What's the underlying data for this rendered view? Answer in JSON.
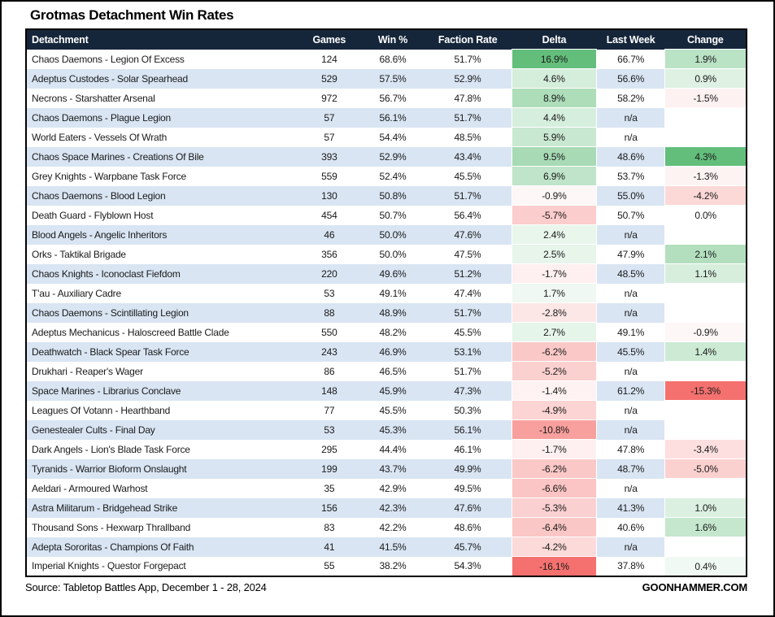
{
  "title": "Grotmas Detachment Win Rates",
  "colors": {
    "header_bg": "#16263a",
    "stripe": "#d9e5f3",
    "scale_positive_green": "#63be7b",
    "scale_negative_red": "#f4716f",
    "blank_cell": "#ffffff"
  },
  "table": {
    "columns": [
      "Detachment",
      "Games",
      "Win %",
      "Faction Rate",
      "Delta",
      "Last Week",
      "Change"
    ],
    "rows": [
      {
        "detachment": "Chaos Daemons - Legion Of Excess",
        "games": "124",
        "win": "68.6%",
        "faction": "51.7%",
        "delta": "16.9%",
        "last_week": "66.7%",
        "change": "1.9%"
      },
      {
        "detachment": "Adeptus Custodes - Solar Spearhead",
        "games": "529",
        "win": "57.5%",
        "faction": "52.9%",
        "delta": "4.6%",
        "last_week": "56.6%",
        "change": "0.9%"
      },
      {
        "detachment": "Necrons - Starshatter Arsenal",
        "games": "972",
        "win": "56.7%",
        "faction": "47.8%",
        "delta": "8.9%",
        "last_week": "58.2%",
        "change": "-1.5%"
      },
      {
        "detachment": "Chaos Daemons - Plague Legion",
        "games": "57",
        "win": "56.1%",
        "faction": "51.7%",
        "delta": "4.4%",
        "last_week": "n/a",
        "change": ""
      },
      {
        "detachment": "World Eaters - Vessels Of Wrath",
        "games": "57",
        "win": "54.4%",
        "faction": "48.5%",
        "delta": "5.9%",
        "last_week": "n/a",
        "change": ""
      },
      {
        "detachment": "Chaos Space Marines - Creations Of Bile",
        "games": "393",
        "win": "52.9%",
        "faction": "43.4%",
        "delta": "9.5%",
        "last_week": "48.6%",
        "change": "4.3%"
      },
      {
        "detachment": "Grey Knights - Warpbane Task Force",
        "games": "559",
        "win": "52.4%",
        "faction": "45.5%",
        "delta": "6.9%",
        "last_week": "53.7%",
        "change": "-1.3%"
      },
      {
        "detachment": "Chaos Daemons - Blood Legion",
        "games": "130",
        "win": "50.8%",
        "faction": "51.7%",
        "delta": "-0.9%",
        "last_week": "55.0%",
        "change": "-4.2%"
      },
      {
        "detachment": "Death Guard - Flyblown Host",
        "games": "454",
        "win": "50.7%",
        "faction": "56.4%",
        "delta": "-5.7%",
        "last_week": "50.7%",
        "change": "0.0%"
      },
      {
        "detachment": "Blood Angels - Angelic Inheritors",
        "games": "46",
        "win": "50.0%",
        "faction": "47.6%",
        "delta": "2.4%",
        "last_week": "n/a",
        "change": ""
      },
      {
        "detachment": "Orks - Taktikal Brigade",
        "games": "356",
        "win": "50.0%",
        "faction": "47.5%",
        "delta": "2.5%",
        "last_week": "47.9%",
        "change": "2.1%"
      },
      {
        "detachment": "Chaos Knights - Iconoclast Fiefdom",
        "games": "220",
        "win": "49.6%",
        "faction": "51.2%",
        "delta": "-1.7%",
        "last_week": "48.5%",
        "change": "1.1%"
      },
      {
        "detachment": "T'au - Auxiliary Cadre",
        "games": "53",
        "win": "49.1%",
        "faction": "47.4%",
        "delta": "1.7%",
        "last_week": "n/a",
        "change": ""
      },
      {
        "detachment": "Chaos Daemons - Scintillating Legion",
        "games": "88",
        "win": "48.9%",
        "faction": "51.7%",
        "delta": "-2.8%",
        "last_week": "n/a",
        "change": ""
      },
      {
        "detachment": "Adeptus Mechanicus - Haloscreed Battle Clade",
        "games": "550",
        "win": "48.2%",
        "faction": "45.5%",
        "delta": "2.7%",
        "last_week": "49.1%",
        "change": "-0.9%"
      },
      {
        "detachment": "Deathwatch - Black Spear Task Force",
        "games": "243",
        "win": "46.9%",
        "faction": "53.1%",
        "delta": "-6.2%",
        "last_week": "45.5%",
        "change": "1.4%"
      },
      {
        "detachment": "Drukhari - Reaper's Wager",
        "games": "86",
        "win": "46.5%",
        "faction": "51.7%",
        "delta": "-5.2%",
        "last_week": "n/a",
        "change": ""
      },
      {
        "detachment": "Space Marines - Librarius Conclave",
        "games": "148",
        "win": "45.9%",
        "faction": "47.3%",
        "delta": "-1.4%",
        "last_week": "61.2%",
        "change": "-15.3%"
      },
      {
        "detachment": "Leagues Of Votann - Hearthband",
        "games": "77",
        "win": "45.5%",
        "faction": "50.3%",
        "delta": "-4.9%",
        "last_week": "n/a",
        "change": ""
      },
      {
        "detachment": "Genestealer Cults - Final Day",
        "games": "53",
        "win": "45.3%",
        "faction": "56.1%",
        "delta": "-10.8%",
        "last_week": "n/a",
        "change": ""
      },
      {
        "detachment": "Dark Angels - Lion's Blade Task Force",
        "games": "295",
        "win": "44.4%",
        "faction": "46.1%",
        "delta": "-1.7%",
        "last_week": "47.8%",
        "change": "-3.4%"
      },
      {
        "detachment": "Tyranids - Warrior Bioform Onslaught",
        "games": "199",
        "win": "43.7%",
        "faction": "49.9%",
        "delta": "-6.2%",
        "last_week": "48.7%",
        "change": "-5.0%"
      },
      {
        "detachment": "Aeldari - Armoured Warhost",
        "games": "35",
        "win": "42.9%",
        "faction": "49.5%",
        "delta": "-6.6%",
        "last_week": "n/a",
        "change": ""
      },
      {
        "detachment": "Astra Militarum - Bridgehead Strike",
        "games": "156",
        "win": "42.3%",
        "faction": "47.6%",
        "delta": "-5.3%",
        "last_week": "41.3%",
        "change": "1.0%"
      },
      {
        "detachment": "Thousand Sons - Hexwarp Thrallband",
        "games": "83",
        "win": "42.2%",
        "faction": "48.6%",
        "delta": "-6.4%",
        "last_week": "40.6%",
        "change": "1.6%"
      },
      {
        "detachment": "Adepta Sororitas - Champions Of Faith",
        "games": "41",
        "win": "41.5%",
        "faction": "45.7%",
        "delta": "-4.2%",
        "last_week": "n/a",
        "change": ""
      },
      {
        "detachment": "Imperial Knights - Questor Forgepact",
        "games": "55",
        "win": "38.2%",
        "faction": "54.3%",
        "delta": "-16.1%",
        "last_week": "37.8%",
        "change": "0.4%"
      }
    ]
  },
  "footer": {
    "source": "Source: Tabletop Battles App, December 1 - 28, 2024",
    "brand": "GOONHAMMER.COM"
  }
}
